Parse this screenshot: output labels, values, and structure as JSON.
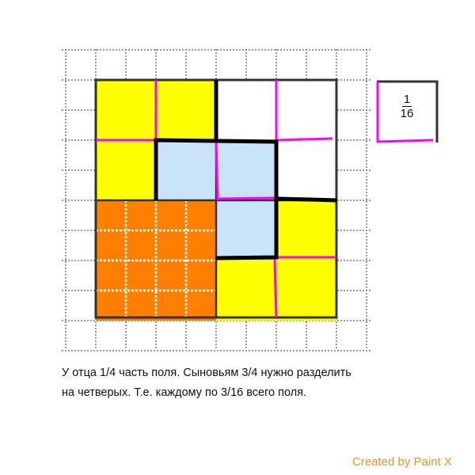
{
  "caption": {
    "line1": "У отца 1/4 часть поля. Сыновьям 3/4 нужно разделить",
    "line2": "на четверых. Т.е. каждому по 3/16 всего поля."
  },
  "fraction": {
    "numerator": "1",
    "denominator": "16"
  },
  "credit": "Created by Paint X",
  "colors": {
    "yellow": "#ffff00",
    "blue": "#c8e2f8",
    "orange": "#ff7f00",
    "magenta": "#ff00ff",
    "white": "#ffffff"
  },
  "field": {
    "cells": [
      [
        "yellow",
        "yellow",
        "white",
        "white"
      ],
      [
        "yellow",
        "blue",
        "blue",
        "white"
      ],
      [
        "orange",
        "orange",
        "blue",
        "yellow"
      ],
      [
        "orange",
        "orange",
        "yellow",
        "yellow"
      ]
    ]
  }
}
